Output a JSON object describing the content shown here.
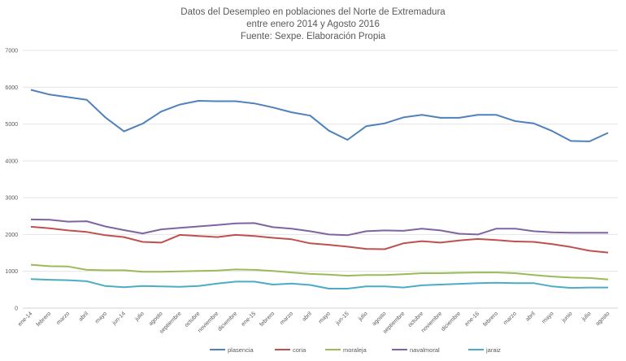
{
  "chart_data": {
    "type": "line",
    "title": [
      "Datos del Desempleo en poblaciones del Norte de Extremadura",
      "entre enero 2014 y Agosto 2016",
      "Fuente: Sexpe. Elaboración Propia"
    ],
    "xlabel": "",
    "ylabel": "",
    "ylim": [
      0,
      7000
    ],
    "yticks": [
      0,
      1000,
      2000,
      3000,
      4000,
      5000,
      6000,
      7000
    ],
    "grid": true,
    "legend": "bottom",
    "categories": [
      "ene-14",
      "febrero",
      "marzo",
      "abril",
      "mayo",
      "jun-14",
      "julio",
      "agosto",
      "septiembre",
      "octubre",
      "noviembre",
      "diciembre",
      "ene-15",
      "febrero",
      "marzo",
      "abril",
      "mayo",
      "jun-15",
      "julio",
      "agosto",
      "septiembre",
      "octubre",
      "noviembre",
      "diciembre",
      "ene-16",
      "febrero",
      "marzo",
      "abril",
      "mayo",
      "junio",
      "julio",
      "agosto"
    ],
    "series": [
      {
        "name": "plasencia",
        "color": "#4f81bd",
        "values": [
          5930,
          5800,
          5730,
          5660,
          5180,
          4800,
          5010,
          5340,
          5530,
          5630,
          5620,
          5620,
          5560,
          5450,
          5320,
          5230,
          4820,
          4570,
          4940,
          5020,
          5180,
          5250,
          5170,
          5170,
          5250,
          5250,
          5080,
          5020,
          4810,
          4540,
          4530,
          4760
        ]
      },
      {
        "name": "coria",
        "color": "#c0504d",
        "values": [
          2210,
          2170,
          2110,
          2070,
          1980,
          1930,
          1800,
          1780,
          1990,
          1960,
          1930,
          1990,
          1960,
          1910,
          1870,
          1760,
          1720,
          1670,
          1610,
          1600,
          1760,
          1820,
          1780,
          1840,
          1880,
          1850,
          1810,
          1800,
          1740,
          1660,
          1560,
          1510
        ]
      },
      {
        "name": "moraleja",
        "color": "#9bbb59",
        "values": [
          1180,
          1140,
          1130,
          1040,
          1030,
          1030,
          990,
          990,
          1000,
          1010,
          1020,
          1050,
          1040,
          1010,
          970,
          930,
          910,
          880,
          900,
          900,
          920,
          950,
          950,
          960,
          970,
          970,
          950,
          900,
          860,
          830,
          820,
          780
        ]
      },
      {
        "name": "navalmoral",
        "color": "#8064a2",
        "values": [
          2410,
          2400,
          2350,
          2360,
          2220,
          2120,
          2030,
          2140,
          2180,
          2220,
          2260,
          2300,
          2310,
          2200,
          2160,
          2090,
          2000,
          1980,
          2090,
          2110,
          2100,
          2160,
          2110,
          2020,
          2000,
          2160,
          2160,
          2090,
          2060,
          2050,
          2050,
          2050
        ]
      },
      {
        "name": "jaraiz",
        "color": "#4bacc6",
        "values": [
          790,
          770,
          760,
          730,
          600,
          570,
          600,
          590,
          580,
          600,
          670,
          720,
          720,
          640,
          670,
          630,
          530,
          530,
          590,
          590,
          560,
          620,
          640,
          660,
          680,
          690,
          680,
          680,
          590,
          550,
          560,
          560
        ]
      }
    ]
  }
}
